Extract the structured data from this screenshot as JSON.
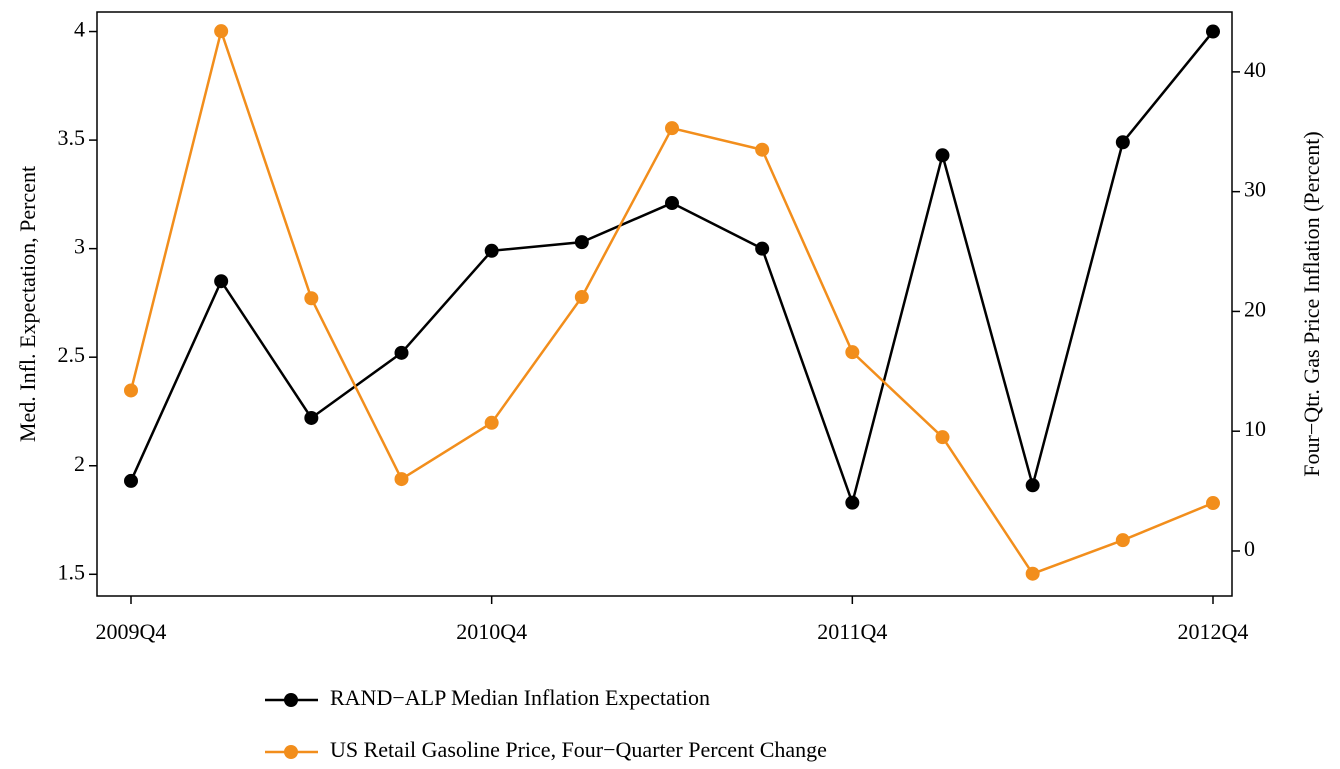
{
  "chart_data": {
    "type": "line",
    "categories": [
      "2009Q4",
      null,
      null,
      null,
      "2010Q4",
      null,
      null,
      null,
      "2011Q4",
      null,
      null,
      null,
      "2012Q4"
    ],
    "y_label": "Med. Infl. Expectation, Percent",
    "y2_label": "Four−Qtr. Gas Price Inflation (Percent)",
    "ylim": [
      1.4,
      4.09
    ],
    "yticks": [
      1.5,
      2,
      2.5,
      3,
      3.5,
      4
    ],
    "y2lim": [
      -3.76,
      45.0
    ],
    "y2ticks": [
      0,
      10,
      20,
      30,
      40
    ],
    "series": [
      {
        "name": "RAND−ALP Median Inflation Expectation",
        "color": "#000000",
        "values": [
          1.93,
          2.85,
          2.22,
          2.52,
          2.99,
          3.03,
          3.21,
          3.0,
          1.83,
          3.43,
          1.91,
          3.49,
          4.0
        ]
      },
      {
        "name": "US Retail Gasoline Price, Four−Quarter Percent Change",
        "color": "#f28e1c",
        "axis": "y2",
        "values": [
          13.4,
          43.4,
          21.1,
          6.0,
          10.7,
          21.2,
          35.3,
          33.5,
          16.6,
          9.5,
          -1.9,
          0.9,
          4.0
        ]
      }
    ]
  }
}
